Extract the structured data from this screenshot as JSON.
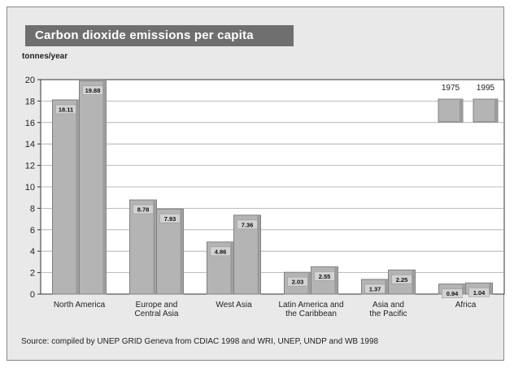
{
  "chart_data": {
    "type": "bar",
    "title": "Carbon dioxide emissions per capita",
    "ylabel": "tonnes/year",
    "ylim": [
      0,
      20
    ],
    "yticks": [
      0,
      2,
      4,
      6,
      8,
      10,
      12,
      14,
      16,
      18,
      20
    ],
    "grid": true,
    "legend_position": "top-right",
    "categories": [
      [
        "North America"
      ],
      [
        "Europe and",
        "Central Asia"
      ],
      [
        "West Asia"
      ],
      [
        "Latin America and",
        "the Caribbean"
      ],
      [
        "Asia and",
        "the Pacific"
      ],
      [
        "Africa"
      ]
    ],
    "series": [
      {
        "name": "1975",
        "values": [
          18.11,
          8.78,
          4.86,
          2.03,
          1.37,
          0.94
        ],
        "labels": [
          "18.11",
          "8.78",
          "4.86",
          "2.03",
          "1.37",
          "0.94"
        ]
      },
      {
        "name": "1995",
        "values": [
          19.88,
          7.93,
          7.36,
          2.55,
          2.25,
          1.04
        ],
        "labels": [
          "19.88",
          "7.93",
          "7.36",
          "2.55",
          "2.25",
          "1.04"
        ]
      }
    ],
    "source": "Source: compiled by UNEP GRID Geneva from CDIAC 1998 and WRI, UNEP, UNDP and WB 1998"
  },
  "colors": {
    "bar": "#b4b4b4",
    "bar_edge": "#808080",
    "panel": "#ffffff",
    "title_bg": "#6f6f6f"
  }
}
